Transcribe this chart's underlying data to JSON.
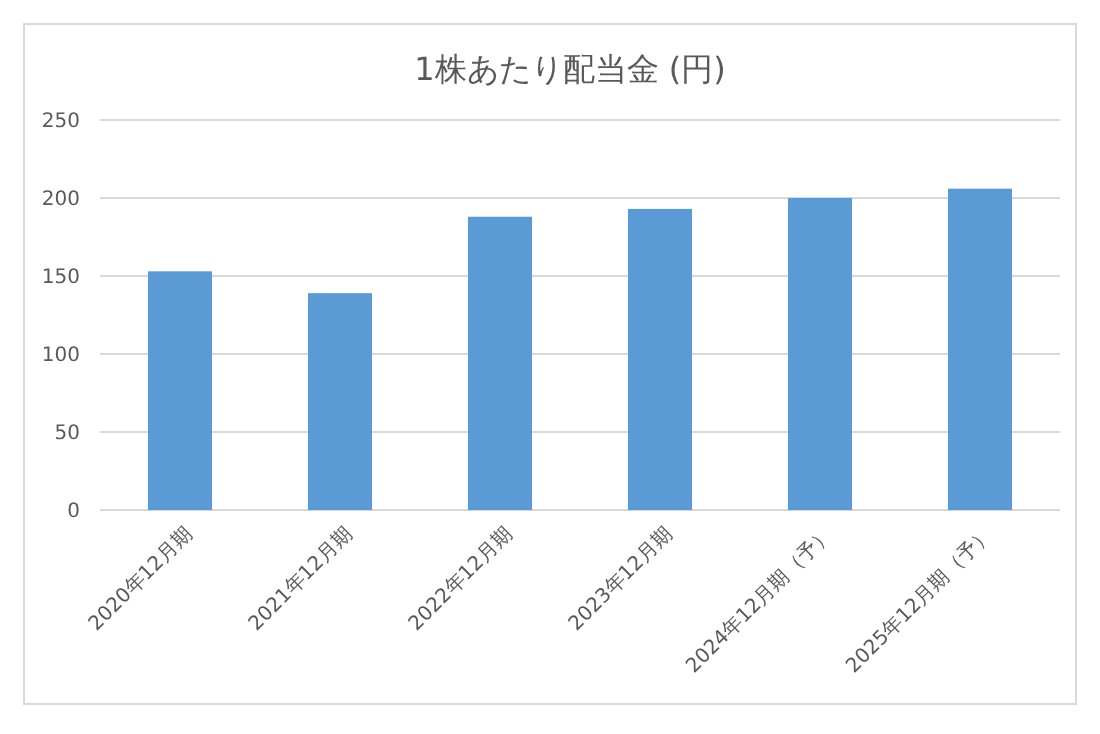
{
  "chart_data": {
    "type": "bar",
    "title": "1株あたり配当金 (円)",
    "categories": [
      "2020年12月期",
      "2021年12月期",
      "2022年12月期",
      "2023年12月期",
      "2024年12月期（予）",
      "2025年12月期（予）"
    ],
    "values": [
      153,
      139,
      188,
      193,
      200,
      206
    ],
    "color": "#5b9bd5",
    "ylim": [
      0,
      250
    ],
    "yticks": [
      0,
      50,
      100,
      150,
      200,
      250
    ],
    "grid": "y"
  }
}
